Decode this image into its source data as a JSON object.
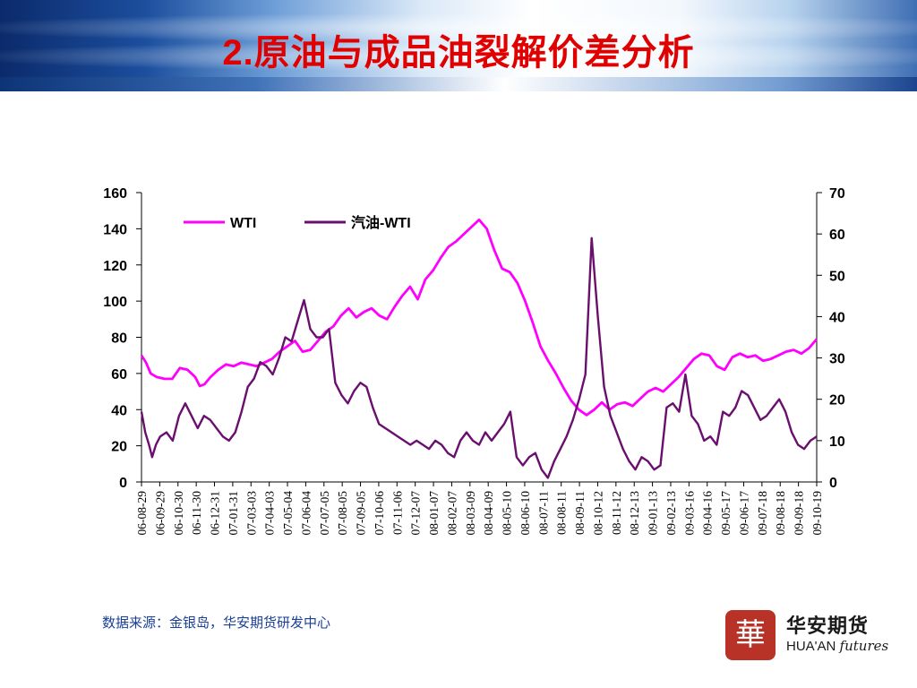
{
  "slide": {
    "title_num": "2.",
    "title_text": "原油与成品油裂解价差分析",
    "title_color": "#e00000",
    "source_note": "数据来源：金银岛，华安期货研发中心",
    "logo": {
      "seal_char": "華",
      "name_cn": "华安期货",
      "name_en_1": "HUA'AN",
      "name_en_2": "futures"
    }
  },
  "chart_data": {
    "type": "line",
    "title": "",
    "left_axis": {
      "min": 0,
      "max": 160,
      "ticks": [
        "0",
        "20",
        "40",
        "60",
        "80",
        "100",
        "120",
        "140",
        "160"
      ]
    },
    "right_axis": {
      "min": 0,
      "max": 70,
      "ticks": [
        "0",
        "10",
        "20",
        "30",
        "40",
        "50",
        "60",
        "70"
      ]
    },
    "x_tick_labels": [
      "06-08-29",
      "06-09-29",
      "06-10-30",
      "06-11-30",
      "06-12-31",
      "07-01-31",
      "07-03-03",
      "07-04-03",
      "07-05-04",
      "07-06-04",
      "07-07-05",
      "07-08-05",
      "07-09-05",
      "07-10-06",
      "07-11-06",
      "07-12-07",
      "08-01-07",
      "08-02-07",
      "08-03-09",
      "08-04-09",
      "08-05-10",
      "08-06-10",
      "08-07-11",
      "08-08-11",
      "08-09-11",
      "08-10-12",
      "08-11-12",
      "08-12-13",
      "09-01-13",
      "09-02-13",
      "09-03-16",
      "09-04-16",
      "09-05-17",
      "09-06-17",
      "09-07-18",
      "09-08-18",
      "09-09-18",
      "09-10-19"
    ],
    "grid": false,
    "legend_position": "top-left",
    "series": [
      {
        "name": "WTI",
        "axis": "left",
        "color": "#ff00ff",
        "points": [
          [
            0,
            70
          ],
          [
            0.6,
            66
          ],
          [
            1.2,
            60
          ],
          [
            2,
            58
          ],
          [
            3,
            57
          ],
          [
            4,
            57
          ],
          [
            5,
            63
          ],
          [
            6,
            62
          ],
          [
            7,
            58
          ],
          [
            7.6,
            53
          ],
          [
            8.2,
            54
          ],
          [
            9,
            58
          ],
          [
            10,
            62
          ],
          [
            11,
            65
          ],
          [
            12,
            64
          ],
          [
            13,
            66
          ],
          [
            14,
            65
          ],
          [
            15,
            64
          ],
          [
            16,
            66
          ],
          [
            17,
            68
          ],
          [
            18,
            72
          ],
          [
            19,
            75
          ],
          [
            20,
            78
          ],
          [
            21,
            72
          ],
          [
            22,
            73
          ],
          [
            23,
            78
          ],
          [
            24,
            83
          ],
          [
            25,
            86
          ],
          [
            26,
            92
          ],
          [
            27,
            96
          ],
          [
            28,
            91
          ],
          [
            29,
            94
          ],
          [
            30,
            96
          ],
          [
            31,
            92
          ],
          [
            32,
            90
          ],
          [
            33,
            97
          ],
          [
            34,
            103
          ],
          [
            35,
            108
          ],
          [
            36,
            101
          ],
          [
            37,
            112
          ],
          [
            38,
            117
          ],
          [
            39,
            124
          ],
          [
            40,
            130
          ],
          [
            41,
            133
          ],
          [
            42,
            137
          ],
          [
            43,
            141
          ],
          [
            44,
            145
          ],
          [
            45,
            140
          ],
          [
            46,
            128
          ],
          [
            47,
            118
          ],
          [
            48,
            116
          ],
          [
            49,
            110
          ],
          [
            50,
            100
          ],
          [
            51,
            88
          ],
          [
            52,
            75
          ],
          [
            53,
            67
          ],
          [
            54,
            60
          ],
          [
            55,
            52
          ],
          [
            56,
            45
          ],
          [
            57,
            40
          ],
          [
            58,
            37
          ],
          [
            59,
            40
          ],
          [
            60,
            44
          ],
          [
            61,
            40
          ],
          [
            62,
            43
          ],
          [
            63,
            44
          ],
          [
            64,
            42
          ],
          [
            65,
            46
          ],
          [
            66,
            50
          ],
          [
            67,
            52
          ],
          [
            68,
            50
          ],
          [
            69,
            54
          ],
          [
            70,
            58
          ],
          [
            71,
            63
          ],
          [
            72,
            68
          ],
          [
            73,
            71
          ],
          [
            74,
            70
          ],
          [
            75,
            64
          ],
          [
            76,
            62
          ],
          [
            77,
            69
          ],
          [
            78,
            71
          ],
          [
            79,
            69
          ],
          [
            80,
            70
          ],
          [
            81,
            67
          ],
          [
            82,
            68
          ],
          [
            83,
            70
          ],
          [
            84,
            72
          ],
          [
            85,
            73
          ],
          [
            86,
            71
          ],
          [
            87,
            74
          ],
          [
            88,
            79
          ]
        ]
      },
      {
        "name": "汽油-WTI",
        "axis": "right",
        "color": "#6a0f6e",
        "points": [
          [
            0,
            17
          ],
          [
            0.6,
            12
          ],
          [
            1.2,
            9
          ],
          [
            1.7,
            6
          ],
          [
            2.3,
            9
          ],
          [
            3,
            11
          ],
          [
            4,
            12
          ],
          [
            5,
            10
          ],
          [
            6,
            16
          ],
          [
            7,
            19
          ],
          [
            8,
            16
          ],
          [
            9,
            13
          ],
          [
            10,
            16
          ],
          [
            11,
            15
          ],
          [
            12,
            13
          ],
          [
            13,
            11
          ],
          [
            14,
            10
          ],
          [
            15,
            12
          ],
          [
            16,
            17
          ],
          [
            17,
            23
          ],
          [
            18,
            25
          ],
          [
            19,
            29
          ],
          [
            20,
            28
          ],
          [
            21,
            26
          ],
          [
            22,
            30
          ],
          [
            23,
            35
          ],
          [
            24,
            34
          ],
          [
            25,
            39
          ],
          [
            26,
            44
          ],
          [
            27,
            37
          ],
          [
            28,
            35
          ],
          [
            29,
            35
          ],
          [
            30,
            37
          ],
          [
            31,
            24
          ],
          [
            32,
            21
          ],
          [
            33,
            19
          ],
          [
            34,
            22
          ],
          [
            35,
            24
          ],
          [
            36,
            23
          ],
          [
            37,
            18
          ],
          [
            38,
            14
          ],
          [
            39,
            13
          ],
          [
            40,
            12
          ],
          [
            41,
            11
          ],
          [
            42,
            10
          ],
          [
            43,
            9
          ],
          [
            44,
            10
          ],
          [
            45,
            9
          ],
          [
            46,
            8
          ],
          [
            47,
            10
          ],
          [
            48,
            9
          ],
          [
            49,
            7
          ],
          [
            50,
            6
          ],
          [
            51,
            10
          ],
          [
            52,
            12
          ],
          [
            53,
            10
          ],
          [
            54,
            9
          ],
          [
            55,
            12
          ],
          [
            56,
            10
          ],
          [
            57,
            12
          ],
          [
            58,
            14
          ],
          [
            59,
            17
          ],
          [
            60,
            6
          ],
          [
            61,
            4
          ],
          [
            62,
            6
          ],
          [
            63,
            7
          ],
          [
            64,
            3
          ],
          [
            65,
            1
          ],
          [
            66,
            5
          ],
          [
            67,
            8
          ],
          [
            68,
            11
          ],
          [
            69,
            15
          ],
          [
            70,
            20
          ],
          [
            71,
            26
          ],
          [
            72,
            59
          ],
          [
            73,
            40
          ],
          [
            74,
            23
          ],
          [
            75,
            16
          ],
          [
            76,
            12
          ],
          [
            77,
            8
          ],
          [
            78,
            5
          ],
          [
            79,
            3
          ],
          [
            80,
            6
          ],
          [
            81,
            5
          ],
          [
            82,
            3
          ],
          [
            83,
            4
          ],
          [
            84,
            18
          ],
          [
            85,
            19
          ],
          [
            86,
            17
          ],
          [
            87,
            26
          ],
          [
            88,
            16
          ],
          [
            89,
            14
          ],
          [
            90,
            10
          ],
          [
            91,
            11
          ],
          [
            92,
            9
          ],
          [
            93,
            17
          ],
          [
            94,
            16
          ],
          [
            95,
            18
          ],
          [
            96,
            22
          ],
          [
            97,
            21
          ],
          [
            98,
            18
          ],
          [
            99,
            15
          ],
          [
            100,
            16
          ],
          [
            101,
            18
          ],
          [
            102,
            20
          ],
          [
            103,
            17
          ],
          [
            104,
            12
          ],
          [
            105,
            9
          ],
          [
            106,
            8
          ],
          [
            107,
            10
          ],
          [
            108,
            11
          ]
        ]
      }
    ]
  }
}
